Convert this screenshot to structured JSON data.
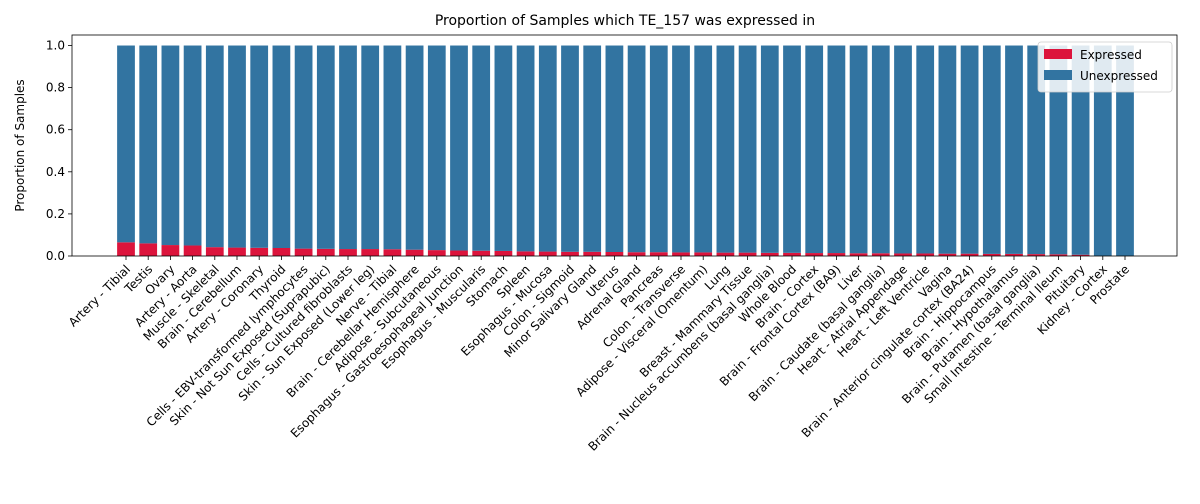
{
  "chart_data": {
    "type": "bar",
    "stacked": true,
    "title": "Proportion of Samples which TE_157 was expressed in",
    "xlabel": "",
    "ylabel": "Proportion of Samples",
    "ylim": [
      0,
      1.05
    ],
    "yticks": [
      "0.0",
      "0.2",
      "0.4",
      "0.6",
      "0.8",
      "1.0"
    ],
    "grid": false,
    "legend_position": "top-right",
    "categories": [
      "Artery - Tibial",
      "Testis",
      "Ovary",
      "Artery - Aorta",
      "Muscle - Skeletal",
      "Brain - Cerebellum",
      "Artery - Coronary",
      "Thyroid",
      "Cells - EBV-transformed lymphocytes",
      "Skin - Not Sun Exposed (Suprapubic)",
      "Cells - Cultured fibroblasts",
      "Skin - Sun Exposed (Lower leg)",
      "Nerve - Tibial",
      "Brain - Cerebellar Hemisphere",
      "Adipose - Subcutaneous",
      "Esophagus - Gastroesophageal Junction",
      "Esophagus - Muscularis",
      "Stomach",
      "Spleen",
      "Esophagus - Mucosa",
      "Colon - Sigmoid",
      "Minor Salivary Gland",
      "Uterus",
      "Adrenal Gland",
      "Pancreas",
      "Colon - Transverse",
      "Adipose - Visceral (Omentum)",
      "Lung",
      "Breast - Mammary Tissue",
      "Brain - Nucleus accumbens (basal ganglia)",
      "Whole Blood",
      "Brain - Cortex",
      "Brain - Frontal Cortex (BA9)",
      "Liver",
      "Brain - Caudate (basal ganglia)",
      "Heart - Atrial Appendage",
      "Heart - Left Ventricle",
      "Vagina",
      "Brain - Anterior cingulate cortex (BA24)",
      "Brain - Hippocampus",
      "Brain - Hypothalamus",
      "Brain - Putamen (basal ganglia)",
      "Small Intestine - Terminal Ileum",
      "Pituitary",
      "Kidney - Cortex",
      "Prostate"
    ],
    "series": [
      {
        "name": "Expressed",
        "color": "#dc143c",
        "values": [
          0.065,
          0.06,
          0.052,
          0.05,
          0.042,
          0.04,
          0.039,
          0.038,
          0.035,
          0.034,
          0.033,
          0.033,
          0.032,
          0.03,
          0.028,
          0.026,
          0.025,
          0.024,
          0.022,
          0.021,
          0.02,
          0.02,
          0.019,
          0.018,
          0.018,
          0.017,
          0.017,
          0.016,
          0.016,
          0.015,
          0.015,
          0.014,
          0.014,
          0.013,
          0.013,
          0.012,
          0.012,
          0.011,
          0.011,
          0.01,
          0.01,
          0.009,
          0.008,
          0.006,
          0.0,
          0.0
        ]
      },
      {
        "name": "Unexpressed",
        "color": "#3274a1",
        "values": [
          0.935,
          0.94,
          0.948,
          0.95,
          0.958,
          0.96,
          0.961,
          0.962,
          0.965,
          0.966,
          0.967,
          0.967,
          0.968,
          0.97,
          0.972,
          0.974,
          0.975,
          0.976,
          0.978,
          0.979,
          0.98,
          0.98,
          0.981,
          0.982,
          0.982,
          0.983,
          0.983,
          0.984,
          0.984,
          0.985,
          0.985,
          0.986,
          0.986,
          0.987,
          0.987,
          0.988,
          0.988,
          0.989,
          0.989,
          0.99,
          0.99,
          0.991,
          0.992,
          0.994,
          1.0,
          1.0
        ]
      }
    ]
  }
}
